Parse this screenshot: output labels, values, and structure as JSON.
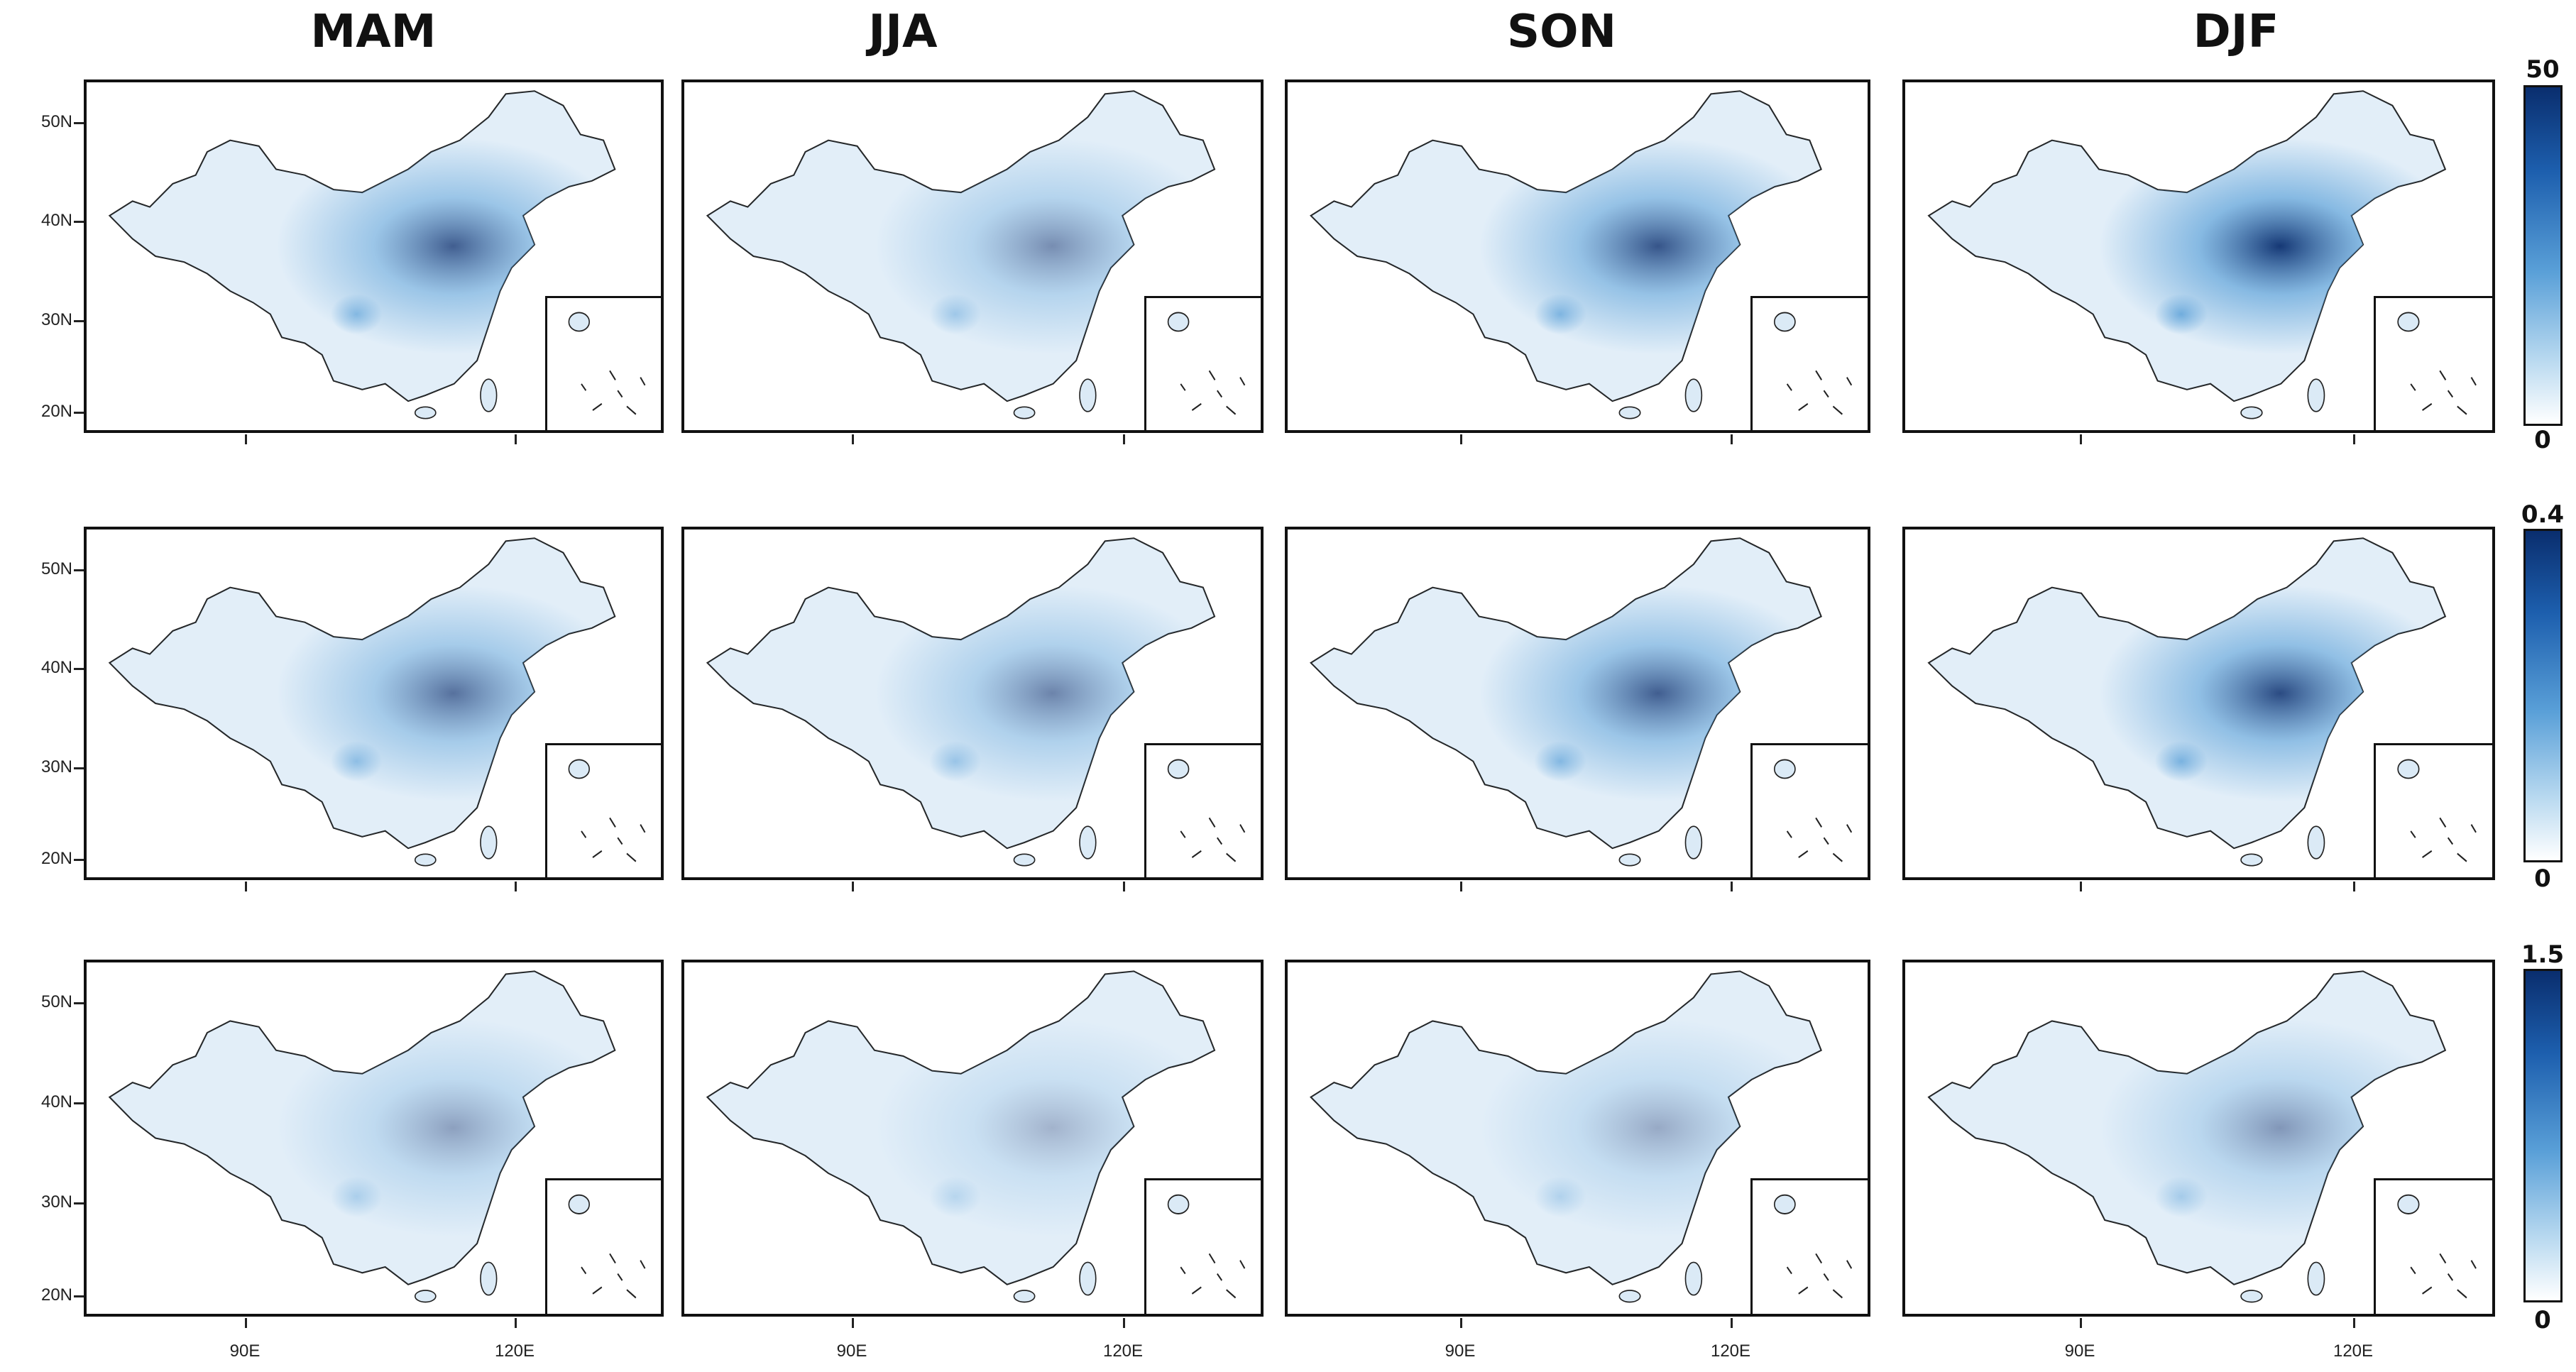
{
  "seasons": [
    "MAM",
    "JJA",
    "SON",
    "DJF"
  ],
  "latitude_labels": [
    "50N",
    "40N",
    "30N",
    "20N"
  ],
  "longitude_labels": [
    "90E",
    "120E"
  ],
  "colorbars": [
    {
      "max": "50",
      "min": "0"
    },
    {
      "max": "0.4",
      "min": "0"
    },
    {
      "max": "1.5",
      "min": "0"
    }
  ],
  "colors": {
    "low": "#ffffff",
    "mid": "#5aa0d8",
    "high": "#0a2e6e",
    "border": "#111111"
  },
  "chart_data": {
    "type": "heatmap",
    "title": "",
    "rows": 3,
    "columns": [
      "MAM",
      "JJA",
      "SON",
      "DJF"
    ],
    "value_ranges": [
      [
        0,
        50
      ],
      [
        0,
        0.4
      ],
      [
        0,
        1.5
      ]
    ],
    "relative_hotspot_intensity": [
      [
        0.8,
        0.55,
        0.85,
        1.0
      ],
      [
        0.7,
        0.6,
        0.8,
        0.9
      ],
      [
        0.45,
        0.35,
        0.4,
        0.5
      ]
    ]
  }
}
